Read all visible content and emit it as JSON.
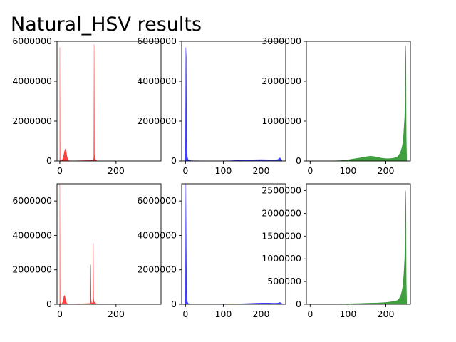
{
  "figure": {
    "title": "Natural_HSV results"
  },
  "chart_data": [
    {
      "type": "area",
      "panel": "row1-col1",
      "color": "#ff0000",
      "xlim": [
        -10,
        360
      ],
      "ylim": [
        0,
        6000000
      ],
      "xticks": [
        0,
        200
      ],
      "yticks": [
        0,
        2000000,
        4000000,
        6000000
      ],
      "series": [
        {
          "x": [
            0,
            1,
            2,
            3,
            4,
            5,
            6,
            7,
            8,
            9,
            10,
            11,
            12,
            13,
            14,
            15,
            16,
            17,
            18,
            19,
            20,
            21,
            22,
            23,
            24,
            25,
            26,
            27,
            28,
            29,
            30,
            31,
            32,
            33,
            34,
            35,
            36,
            37,
            38,
            39,
            40,
            119,
            120,
            121,
            122,
            123,
            124,
            125,
            126,
            127,
            128,
            129,
            130,
            131,
            132,
            133,
            134,
            135,
            136,
            137,
            138,
            139,
            140,
            145,
            150,
            155,
            160
          ],
          "y": [
            5700000,
            80000,
            40000,
            20000,
            10000,
            5000,
            20000,
            30000,
            50000,
            70000,
            100000,
            130000,
            170000,
            220000,
            280000,
            350000,
            420000,
            480000,
            540000,
            590000,
            600000,
            570000,
            510000,
            430000,
            340000,
            260000,
            190000,
            140000,
            100000,
            70000,
            50000,
            30000,
            20000,
            15000,
            10000,
            8000,
            6000,
            4000,
            3000,
            2000,
            1000,
            30000,
            60000,
            200000,
            5850000,
            350000,
            150000,
            60000,
            40000,
            80000,
            40000,
            20000,
            30000,
            15000,
            10000,
            8000,
            5000,
            3000,
            2000,
            1000,
            1000,
            1000,
            1000,
            1000,
            500,
            400,
            300
          ]
        }
      ]
    },
    {
      "type": "area",
      "panel": "row1-col2",
      "color": "#0000ff",
      "xlim": [
        -10,
        265
      ],
      "ylim": [
        0,
        6000000
      ],
      "xticks": [
        0,
        100,
        200
      ],
      "yticks": [
        0,
        2000000,
        4000000,
        6000000
      ],
      "series": [
        {
          "x": [
            0,
            1,
            2,
            3,
            4,
            5,
            6,
            7,
            8,
            9,
            10,
            15,
            20,
            30,
            40,
            60,
            80,
            100,
            120,
            140,
            160,
            180,
            200,
            220,
            230,
            240,
            245,
            248,
            250,
            252,
            255
          ],
          "y": [
            700000,
            5700000,
            5200000,
            1200000,
            400000,
            200000,
            120000,
            80000,
            60000,
            40000,
            30000,
            20000,
            15000,
            10000,
            8000,
            6000,
            5000,
            6000,
            15000,
            35000,
            50000,
            60000,
            70000,
            60000,
            50000,
            60000,
            80000,
            120000,
            160000,
            100000,
            50000
          ]
        }
      ]
    },
    {
      "type": "area",
      "panel": "row1-col3",
      "color": "#008000",
      "xlim": [
        -10,
        265
      ],
      "ylim": [
        0,
        3000000
      ],
      "xticks": [
        0,
        100,
        200
      ],
      "yticks": [
        0,
        1000000,
        2000000,
        3000000
      ],
      "series": [
        {
          "x": [
            0,
            20,
            40,
            60,
            80,
            100,
            120,
            140,
            150,
            160,
            170,
            180,
            190,
            200,
            210,
            220,
            230,
            235,
            240,
            243,
            246,
            248,
            250,
            251,
            252,
            253,
            254,
            255
          ],
          "y": [
            0,
            0,
            1000,
            2000,
            10000,
            30000,
            60000,
            90000,
            110000,
            120000,
            110000,
            90000,
            70000,
            60000,
            60000,
            70000,
            100000,
            150000,
            250000,
            350000,
            500000,
            800000,
            1100000,
            1450000,
            2400000,
            2900000,
            600000,
            100000
          ]
        }
      ]
    },
    {
      "type": "area",
      "panel": "row2-col1",
      "color": "#ff0000",
      "xlim": [
        -10,
        360
      ],
      "ylim": [
        0,
        7000000
      ],
      "xticks": [
        0,
        200
      ],
      "yticks": [
        0,
        2000000,
        4000000,
        6000000
      ],
      "series": [
        {
          "x": [
            0,
            1,
            2,
            3,
            4,
            5,
            6,
            7,
            8,
            9,
            10,
            11,
            12,
            13,
            14,
            15,
            16,
            17,
            18,
            19,
            20,
            21,
            22,
            23,
            24,
            25,
            26,
            27,
            28,
            29,
            30,
            31,
            32,
            33,
            34,
            35,
            40,
            108,
            109,
            110,
            111,
            112,
            113,
            114,
            115,
            116,
            117,
            118,
            119,
            120,
            121,
            122,
            123,
            124,
            125,
            126,
            127,
            128,
            129,
            130,
            131,
            132,
            133,
            134,
            135,
            140,
            150,
            160
          ],
          "y": [
            7100000,
            100000,
            30000,
            20000,
            10000,
            5000,
            20000,
            30000,
            50000,
            80000,
            120000,
            180000,
            250000,
            330000,
            400000,
            460000,
            500000,
            500000,
            460000,
            380000,
            300000,
            230000,
            170000,
            120000,
            90000,
            60000,
            40000,
            30000,
            20000,
            15000,
            10000,
            8000,
            5000,
            3000,
            2000,
            1000,
            1000,
            50000,
            100000,
            2300000,
            300000,
            150000,
            60000,
            50000,
            80000,
            100000,
            80000,
            60000,
            3550000,
            400000,
            200000,
            100000,
            80000,
            120000,
            150000,
            100000,
            80000,
            50000,
            30000,
            20000,
            10000,
            8000,
            5000,
            3000,
            2000,
            1000,
            500,
            300
          ]
        }
      ]
    },
    {
      "type": "area",
      "panel": "row2-col2",
      "color": "#0000ff",
      "xlim": [
        -10,
        265
      ],
      "ylim": [
        0,
        7000000
      ],
      "xticks": [
        0,
        100,
        200
      ],
      "yticks": [
        0,
        2000000,
        4000000,
        6000000
      ],
      "series": [
        {
          "x": [
            0,
            1,
            2,
            3,
            4,
            5,
            6,
            7,
            8,
            9,
            10,
            15,
            20,
            30,
            40,
            60,
            80,
            100,
            120,
            140,
            160,
            180,
            200,
            220,
            230,
            240,
            245,
            248,
            250,
            252,
            255
          ],
          "y": [
            600000,
            7100000,
            3600000,
            900000,
            300000,
            150000,
            90000,
            60000,
            40000,
            30000,
            20000,
            15000,
            10000,
            8000,
            6000,
            5000,
            5000,
            6000,
            12000,
            25000,
            40000,
            55000,
            70000,
            70000,
            60000,
            60000,
            70000,
            90000,
            110000,
            80000,
            40000
          ]
        }
      ]
    },
    {
      "type": "area",
      "panel": "row2-col3",
      "color": "#008000",
      "xlim": [
        -10,
        265
      ],
      "ylim": [
        0,
        2650000
      ],
      "xticks": [
        0,
        100,
        200
      ],
      "yticks": [
        0,
        500000,
        1000000,
        1500000,
        2000000,
        2500000
      ],
      "series": [
        {
          "x": [
            0,
            20,
            40,
            60,
            80,
            100,
            120,
            140,
            160,
            180,
            200,
            210,
            220,
            230,
            235,
            240,
            243,
            246,
            248,
            250,
            251,
            252,
            253,
            254,
            255
          ],
          "y": [
            0,
            0,
            1000,
            2000,
            5000,
            10000,
            15000,
            20000,
            25000,
            30000,
            40000,
            50000,
            60000,
            80000,
            120000,
            200000,
            300000,
            450000,
            700000,
            1000000,
            1400000,
            1950000,
            2500000,
            500000,
            80000
          ]
        }
      ]
    }
  ]
}
